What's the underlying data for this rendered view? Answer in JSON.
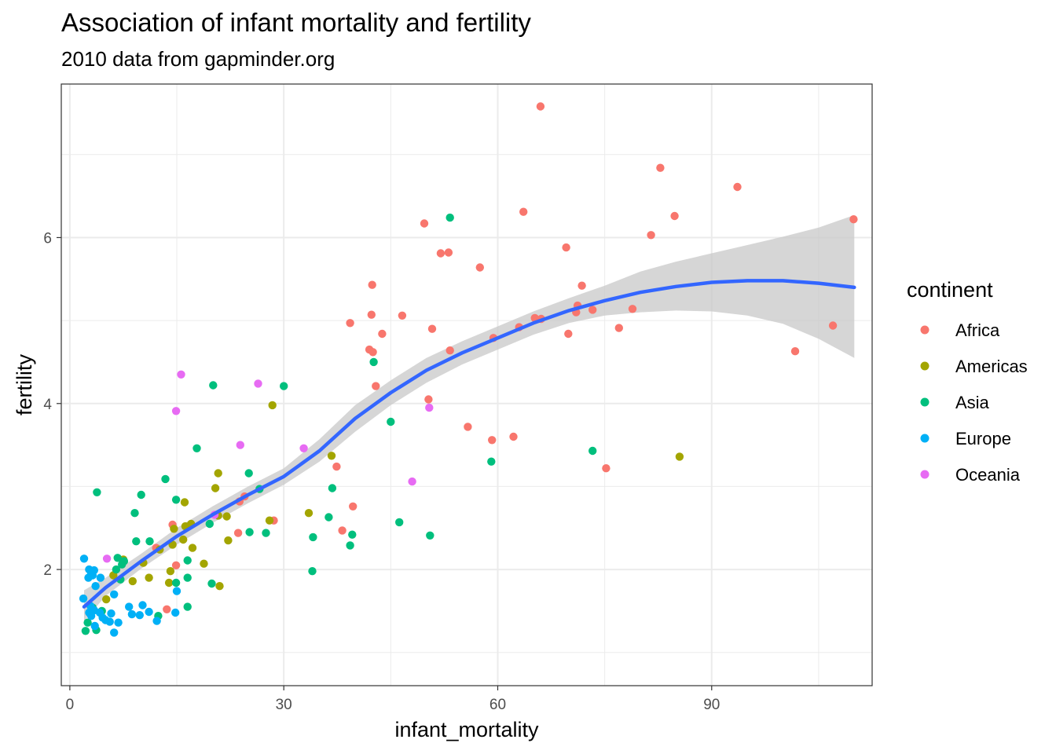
{
  "chart_data": {
    "type": "scatter",
    "title": "Association of infant mortality and fertility",
    "subtitle": "2010 data from gapminder.org",
    "xlabel": "infant_mortality",
    "ylabel": "fertility",
    "xlim": [
      -1.2,
      112.5
    ],
    "ylim": [
      0.6,
      7.85
    ],
    "xticks": [
      0,
      30,
      60,
      90
    ],
    "yticks": [
      2,
      4,
      6
    ],
    "grid": true,
    "legend": {
      "title": "continent",
      "position": "right",
      "entries": [
        "Africa",
        "Americas",
        "Asia",
        "Europe",
        "Oceania"
      ]
    },
    "colors": {
      "Africa": "#F8766D",
      "Americas": "#A3A500",
      "Asia": "#00BF7D",
      "Europe": "#00B0F6",
      "Oceania": "#E76BF3",
      "smooth": "#3366FF",
      "ribbon": "#c8c8c8"
    },
    "series": [
      {
        "name": "Africa",
        "points": [
          [
            66.0,
            7.58
          ],
          [
            82.8,
            6.84
          ],
          [
            93.6,
            6.61
          ],
          [
            63.6,
            6.31
          ],
          [
            84.8,
            6.26
          ],
          [
            109.9,
            6.22
          ],
          [
            49.7,
            6.17
          ],
          [
            81.5,
            6.03
          ],
          [
            52.0,
            5.81
          ],
          [
            53.1,
            5.82
          ],
          [
            69.6,
            5.88
          ],
          [
            57.5,
            5.64
          ],
          [
            42.4,
            5.43
          ],
          [
            71.8,
            5.42
          ],
          [
            42.3,
            5.07
          ],
          [
            46.6,
            5.06
          ],
          [
            39.3,
            4.97
          ],
          [
            71.2,
            5.18
          ],
          [
            73.3,
            5.13
          ],
          [
            78.9,
            5.14
          ],
          [
            71.0,
            5.1
          ],
          [
            65.2,
            5.03
          ],
          [
            66.1,
            5.02
          ],
          [
            63.0,
            4.92
          ],
          [
            50.8,
            4.9
          ],
          [
            77.0,
            4.91
          ],
          [
            43.8,
            4.84
          ],
          [
            69.9,
            4.84
          ],
          [
            59.4,
            4.79
          ],
          [
            107.0,
            4.94
          ],
          [
            42.0,
            4.65
          ],
          [
            42.5,
            4.62
          ],
          [
            53.3,
            4.64
          ],
          [
            101.7,
            4.63
          ],
          [
            42.9,
            4.21
          ],
          [
            50.3,
            4.05
          ],
          [
            55.8,
            3.72
          ],
          [
            59.2,
            3.56
          ],
          [
            62.2,
            3.6
          ],
          [
            75.2,
            3.22
          ],
          [
            37.4,
            3.24
          ],
          [
            24.5,
            2.88
          ],
          [
            23.8,
            2.82
          ],
          [
            39.7,
            2.76
          ],
          [
            28.6,
            2.59
          ],
          [
            38.2,
            2.47
          ],
          [
            23.6,
            2.44
          ],
          [
            14.4,
            2.54
          ],
          [
            12.1,
            2.26
          ],
          [
            14.9,
            2.05
          ],
          [
            13.6,
            1.52
          ]
        ]
      },
      {
        "name": "Americas",
        "points": [
          [
            28.4,
            3.98
          ],
          [
            85.5,
            3.36
          ],
          [
            36.7,
            3.37
          ],
          [
            20.8,
            3.16
          ],
          [
            20.4,
            2.98
          ],
          [
            16.1,
            2.81
          ],
          [
            33.5,
            2.68
          ],
          [
            20.8,
            2.65
          ],
          [
            22.0,
            2.64
          ],
          [
            28.0,
            2.59
          ],
          [
            17.0,
            2.55
          ],
          [
            16.2,
            2.52
          ],
          [
            14.6,
            2.49
          ],
          [
            22.2,
            2.35
          ],
          [
            15.9,
            2.36
          ],
          [
            14.4,
            2.3
          ],
          [
            12.6,
            2.24
          ],
          [
            17.2,
            2.26
          ],
          [
            10.3,
            2.08
          ],
          [
            7.5,
            2.12
          ],
          [
            6.1,
            1.93
          ],
          [
            11.1,
            1.9
          ],
          [
            8.8,
            1.86
          ],
          [
            13.9,
            1.84
          ],
          [
            18.8,
            2.07
          ],
          [
            21.0,
            1.8
          ],
          [
            14.1,
            1.98
          ],
          [
            5.1,
            1.64
          ]
        ]
      },
      {
        "name": "Asia",
        "points": [
          [
            53.3,
            6.24
          ],
          [
            42.6,
            4.5
          ],
          [
            20.1,
            4.22
          ],
          [
            30.0,
            4.21
          ],
          [
            45.0,
            3.78
          ],
          [
            17.8,
            3.46
          ],
          [
            73.3,
            3.43
          ],
          [
            59.1,
            3.3
          ],
          [
            25.1,
            3.16
          ],
          [
            13.4,
            3.09
          ],
          [
            26.6,
            2.97
          ],
          [
            36.8,
            2.98
          ],
          [
            3.8,
            2.93
          ],
          [
            10.0,
            2.9
          ],
          [
            14.9,
            2.84
          ],
          [
            9.1,
            2.68
          ],
          [
            36.3,
            2.63
          ],
          [
            46.2,
            2.57
          ],
          [
            19.6,
            2.55
          ],
          [
            25.2,
            2.45
          ],
          [
            27.5,
            2.44
          ],
          [
            39.6,
            2.42
          ],
          [
            50.5,
            2.41
          ],
          [
            34.1,
            2.39
          ],
          [
            9.3,
            2.34
          ],
          [
            11.2,
            2.34
          ],
          [
            39.3,
            2.29
          ],
          [
            6.7,
            2.14
          ],
          [
            7.6,
            2.1
          ],
          [
            16.5,
            2.11
          ],
          [
            6.5,
            2.0
          ],
          [
            34.0,
            1.98
          ],
          [
            7.1,
            1.88
          ],
          [
            16.5,
            1.9
          ],
          [
            19.9,
            1.83
          ],
          [
            14.9,
            1.84
          ],
          [
            16.5,
            1.55
          ],
          [
            12.4,
            1.44
          ],
          [
            3.2,
            1.54
          ],
          [
            2.5,
            1.36
          ],
          [
            3.7,
            1.27
          ],
          [
            2.2,
            1.26
          ],
          [
            4.5,
            1.5
          ],
          [
            7.3,
            2.06
          ]
        ]
      },
      {
        "name": "Europe",
        "points": [
          [
            2.0,
            2.13
          ],
          [
            2.7,
            2.0
          ],
          [
            3.4,
            1.99
          ],
          [
            2.6,
            1.9
          ],
          [
            3.2,
            1.93
          ],
          [
            4.3,
            1.9
          ],
          [
            3.0,
            1.95
          ],
          [
            3.6,
            1.8
          ],
          [
            1.9,
            1.65
          ],
          [
            6.2,
            1.7
          ],
          [
            15.0,
            1.74
          ],
          [
            8.3,
            1.55
          ],
          [
            10.2,
            1.57
          ],
          [
            2.7,
            1.48
          ],
          [
            3.4,
            1.51
          ],
          [
            4.2,
            1.48
          ],
          [
            3.0,
            1.44
          ],
          [
            5.8,
            1.47
          ],
          [
            8.7,
            1.46
          ],
          [
            11.1,
            1.49
          ],
          [
            14.8,
            1.48
          ],
          [
            9.8,
            1.45
          ],
          [
            5.0,
            1.39
          ],
          [
            6.8,
            1.36
          ],
          [
            12.2,
            1.38
          ],
          [
            3.5,
            1.32
          ],
          [
            6.2,
            1.24
          ],
          [
            5.6,
            1.37
          ],
          [
            2.9,
            1.56
          ],
          [
            4.6,
            1.42
          ]
        ]
      },
      {
        "name": "Oceania",
        "points": [
          [
            15.6,
            4.35
          ],
          [
            26.4,
            4.24
          ],
          [
            14.9,
            3.91
          ],
          [
            50.4,
            3.95
          ],
          [
            23.9,
            3.5
          ],
          [
            32.8,
            3.46
          ],
          [
            48.0,
            3.06
          ],
          [
            20.3,
            2.66
          ],
          [
            5.2,
            2.13
          ]
        ]
      }
    ],
    "smooth": {
      "method": "loess",
      "x": [
        2.0,
        5,
        10,
        15,
        20,
        25,
        30,
        35,
        40,
        45,
        50,
        55,
        60,
        65,
        70,
        75,
        80,
        85,
        90,
        95,
        100,
        105,
        110
      ],
      "y": [
        1.55,
        1.78,
        2.1,
        2.4,
        2.66,
        2.9,
        3.12,
        3.43,
        3.82,
        4.13,
        4.4,
        4.61,
        4.79,
        4.97,
        5.12,
        5.24,
        5.34,
        5.41,
        5.46,
        5.48,
        5.48,
        5.45,
        5.4
      ],
      "lower": [
        1.38,
        1.68,
        2.01,
        2.3,
        2.56,
        2.8,
        3.02,
        3.3,
        3.66,
        3.98,
        4.25,
        4.47,
        4.65,
        4.83,
        4.97,
        5.06,
        5.1,
        5.12,
        5.11,
        5.06,
        4.96,
        4.78,
        4.55
      ],
      "upper": [
        1.75,
        1.9,
        2.19,
        2.5,
        2.76,
        3.0,
        3.22,
        3.57,
        3.98,
        4.28,
        4.55,
        4.75,
        4.93,
        5.11,
        5.27,
        5.42,
        5.59,
        5.71,
        5.81,
        5.91,
        6.01,
        6.12,
        6.27
      ]
    }
  }
}
